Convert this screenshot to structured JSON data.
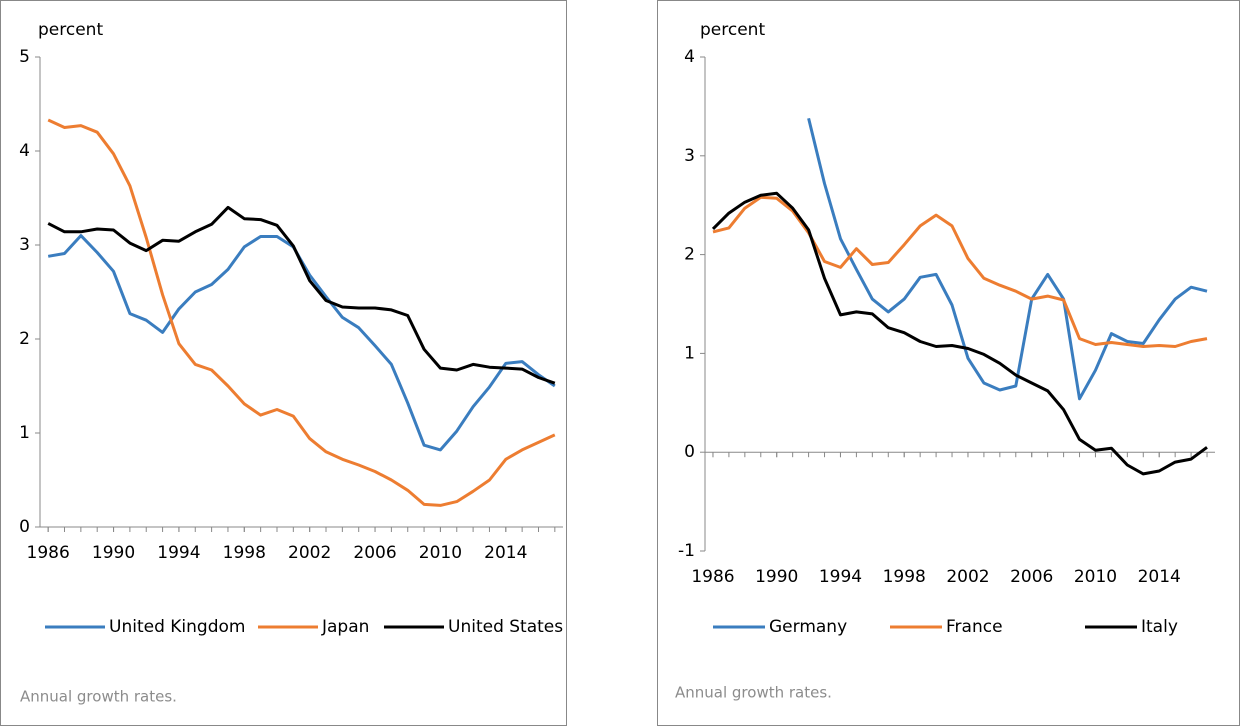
{
  "chart_data": [
    {
      "type": "line",
      "y_label": "percent",
      "note": "Annual growth rates.",
      "x": [
        1986,
        1987,
        1988,
        1989,
        1990,
        1991,
        1992,
        1993,
        1994,
        1995,
        1996,
        1997,
        1998,
        1999,
        2000,
        2001,
        2002,
        2003,
        2004,
        2005,
        2006,
        2007,
        2008,
        2009,
        2010,
        2011,
        2012,
        2013,
        2014,
        2015,
        2016,
        2017
      ],
      "xlim": [
        1985.5,
        2017.5
      ],
      "xticks": [
        1986,
        1990,
        1994,
        1998,
        2002,
        2006,
        2010,
        2014
      ],
      "ylim": [
        0,
        5
      ],
      "yticks": [
        0,
        1,
        2,
        3,
        4,
        5
      ],
      "series": [
        {
          "name": "United Kingdom",
          "color": "#3a7dbf",
          "values": [
            2.88,
            2.91,
            3.1,
            2.92,
            2.72,
            2.27,
            2.2,
            2.07,
            2.32,
            2.5,
            2.58,
            2.74,
            2.98,
            3.09,
            3.09,
            2.98,
            2.68,
            2.45,
            2.23,
            2.12,
            1.93,
            1.73,
            1.32,
            0.87,
            0.82,
            1.02,
            1.28,
            1.49,
            1.74,
            1.76,
            1.62,
            1.5
          ]
        },
        {
          "name": "Japan",
          "color": "#ed7d31",
          "values": [
            4.33,
            4.25,
            4.27,
            4.2,
            3.97,
            3.63,
            3.08,
            2.47,
            1.95,
            1.73,
            1.67,
            1.5,
            1.31,
            1.19,
            1.25,
            1.18,
            0.94,
            0.8,
            0.72,
            0.66,
            0.59,
            0.5,
            0.39,
            0.24,
            0.23,
            0.27,
            0.38,
            0.5,
            0.72,
            0.82,
            0.9,
            0.98
          ]
        },
        {
          "name": "United States",
          "color": "#000000",
          "values": [
            3.23,
            3.14,
            3.14,
            3.17,
            3.16,
            3.02,
            2.94,
            3.05,
            3.04,
            3.14,
            3.22,
            3.4,
            3.28,
            3.27,
            3.21,
            2.99,
            2.62,
            2.41,
            2.34,
            2.33,
            2.33,
            2.31,
            2.25,
            1.89,
            1.69,
            1.67,
            1.73,
            1.7,
            1.69,
            1.68,
            1.59,
            1.53
          ]
        }
      ]
    },
    {
      "type": "line",
      "y_label": "percent",
      "note": "Annual growth rates.",
      "x": [
        1986,
        1987,
        1988,
        1989,
        1990,
        1991,
        1992,
        1993,
        1994,
        1995,
        1996,
        1997,
        1998,
        1999,
        2000,
        2001,
        2002,
        2003,
        2004,
        2005,
        2006,
        2007,
        2008,
        2009,
        2010,
        2011,
        2012,
        2013,
        2014,
        2015,
        2016,
        2017
      ],
      "xlim": [
        1985.5,
        2017.5
      ],
      "xticks": [
        1986,
        1990,
        1994,
        1998,
        2002,
        2006,
        2010,
        2014
      ],
      "ylim": [
        -1,
        4
      ],
      "yticks": [
        -1,
        0,
        1,
        2,
        3,
        4
      ],
      "series": [
        {
          "name": "Germany",
          "color": "#3a7dbf",
          "values": [
            null,
            null,
            null,
            null,
            null,
            null,
            3.38,
            2.72,
            2.16,
            1.85,
            1.55,
            1.42,
            1.55,
            1.77,
            1.8,
            1.49,
            0.95,
            0.7,
            0.63,
            0.67,
            1.55,
            1.8,
            1.55,
            0.54,
            0.83,
            1.2,
            1.12,
            1.1,
            1.34,
            1.55,
            1.67,
            1.63
          ]
        },
        {
          "name": "France",
          "color": "#ed7d31",
          "values": [
            2.23,
            2.27,
            2.47,
            2.58,
            2.57,
            2.44,
            2.22,
            1.93,
            1.87,
            2.06,
            1.9,
            1.92,
            2.1,
            2.29,
            2.4,
            2.29,
            1.96,
            1.76,
            1.69,
            1.63,
            1.55,
            1.58,
            1.54,
            1.15,
            1.09,
            1.11,
            1.09,
            1.07,
            1.08,
            1.07,
            1.12,
            1.15
          ]
        },
        {
          "name": "Italy",
          "color": "#000000",
          "values": [
            2.26,
            2.42,
            2.53,
            2.6,
            2.62,
            2.47,
            2.25,
            1.76,
            1.39,
            1.42,
            1.4,
            1.26,
            1.21,
            1.12,
            1.07,
            1.08,
            1.05,
            0.99,
            0.9,
            0.78,
            0.7,
            0.62,
            0.43,
            0.13,
            0.02,
            0.04,
            -0.13,
            -0.22,
            -0.19,
            -0.1,
            -0.07,
            0.05
          ]
        }
      ]
    }
  ]
}
